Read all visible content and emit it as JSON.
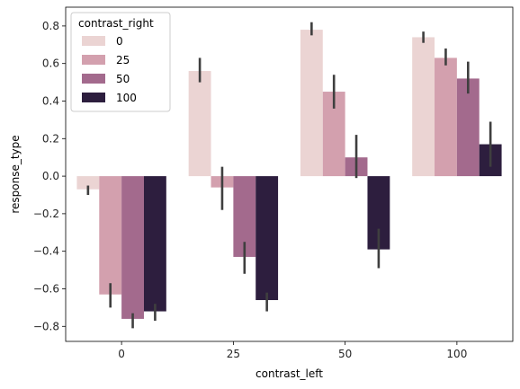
{
  "chart_data": {
    "type": "bar",
    "xlabel": "contrast_left",
    "ylabel": "response_type",
    "categories": [
      "0",
      "25",
      "50",
      "100"
    ],
    "ylim": [
      -0.88,
      0.9
    ],
    "yticks": [
      -0.8,
      -0.6,
      -0.4,
      -0.2,
      0.0,
      0.2,
      0.4,
      0.6,
      0.8
    ],
    "ytick_labels": [
      "−0.8",
      "−0.6",
      "−0.4",
      "−0.2",
      "0.0",
      "0.2",
      "0.4",
      "0.6",
      "0.8"
    ],
    "legend": {
      "title": "contrast_right",
      "location": "upper left"
    },
    "series": [
      {
        "name": "0",
        "color": "#ebd4d3",
        "values": [
          -0.07,
          0.56,
          0.78,
          0.74
        ],
        "ci": [
          [
            -0.1,
            -0.05
          ],
          [
            0.5,
            0.63
          ],
          [
            0.75,
            0.82
          ],
          [
            0.71,
            0.77
          ]
        ]
      },
      {
        "name": "25",
        "color": "#d3a0ae",
        "values": [
          -0.63,
          -0.06,
          0.45,
          0.63
        ],
        "ci": [
          [
            -0.7,
            -0.57
          ],
          [
            -0.18,
            0.05
          ],
          [
            0.36,
            0.54
          ],
          [
            0.59,
            0.68
          ]
        ]
      },
      {
        "name": "50",
        "color": "#a36a8d",
        "values": [
          -0.76,
          -0.43,
          0.1,
          0.52
        ],
        "ci": [
          [
            -0.81,
            -0.73
          ],
          [
            -0.52,
            -0.35
          ],
          [
            -0.01,
            0.22
          ],
          [
            0.44,
            0.61
          ]
        ]
      },
      {
        "name": "100",
        "color": "#2d1e3e",
        "values": [
          -0.72,
          -0.66,
          -0.39,
          0.17
        ],
        "ci": [
          [
            -0.77,
            -0.68
          ],
          [
            -0.72,
            -0.62
          ],
          [
            -0.49,
            -0.28
          ],
          [
            0.05,
            0.29
          ]
        ]
      }
    ]
  }
}
